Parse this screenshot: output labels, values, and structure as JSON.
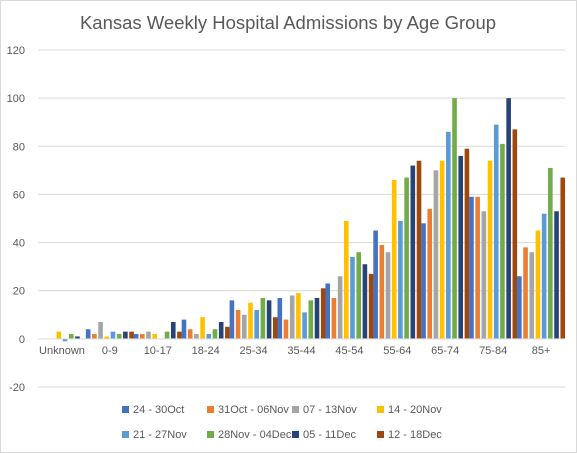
{
  "chart_data": {
    "type": "bar",
    "title": "Kansas Weekly Hospital Admissions by Age Group",
    "xlabel": "",
    "ylabel": "",
    "ylim": [
      -20,
      120
    ],
    "yticks": [
      -20,
      0,
      20,
      40,
      60,
      80,
      100,
      120
    ],
    "grid": true,
    "legend_position": "bottom",
    "categories": [
      "Unknown",
      "0-9",
      "10-17",
      "18-24",
      "25-34",
      "35-44",
      "45-54",
      "55-64",
      "65-74",
      "75-84",
      "85+"
    ],
    "series": [
      {
        "name": "24 - 30Oct",
        "color": "#4472C4",
        "values": [
          0,
          4,
          2,
          8,
          16,
          17,
          23,
          45,
          48,
          59,
          26
        ]
      },
      {
        "name": "31Oct - 06Nov",
        "color": "#ED7D31",
        "values": [
          0,
          2,
          2,
          4,
          12,
          8,
          17,
          39,
          54,
          59,
          38
        ]
      },
      {
        "name": "07 - 13Nov",
        "color": "#A5A5A5",
        "values": [
          0,
          7,
          3,
          2,
          10,
          18,
          26,
          36,
          70,
          53,
          36
        ]
      },
      {
        "name": "14 - 20Nov",
        "color": "#FFC000",
        "values": [
          3,
          1,
          2,
          9,
          15,
          19,
          49,
          66,
          74,
          74,
          45
        ]
      },
      {
        "name": "21 - 27Nov",
        "color": "#5B9BD5",
        "values": [
          -1,
          3,
          0,
          2,
          12,
          11,
          34,
          49,
          86,
          89,
          52
        ]
      },
      {
        "name": "28Nov - 04Dec",
        "color": "#70AD47",
        "values": [
          2,
          2,
          3,
          4,
          17,
          16,
          36,
          67,
          100,
          81,
          71
        ]
      },
      {
        "name": "05 - 11Dec",
        "color": "#264478",
        "values": [
          1,
          3,
          7,
          7,
          16,
          17,
          31,
          72,
          76,
          100,
          53
        ]
      },
      {
        "name": "12 - 18Dec",
        "color": "#9E480E",
        "values": [
          0,
          3,
          3,
          5,
          9,
          21,
          27,
          74,
          79,
          87,
          67
        ]
      }
    ]
  }
}
